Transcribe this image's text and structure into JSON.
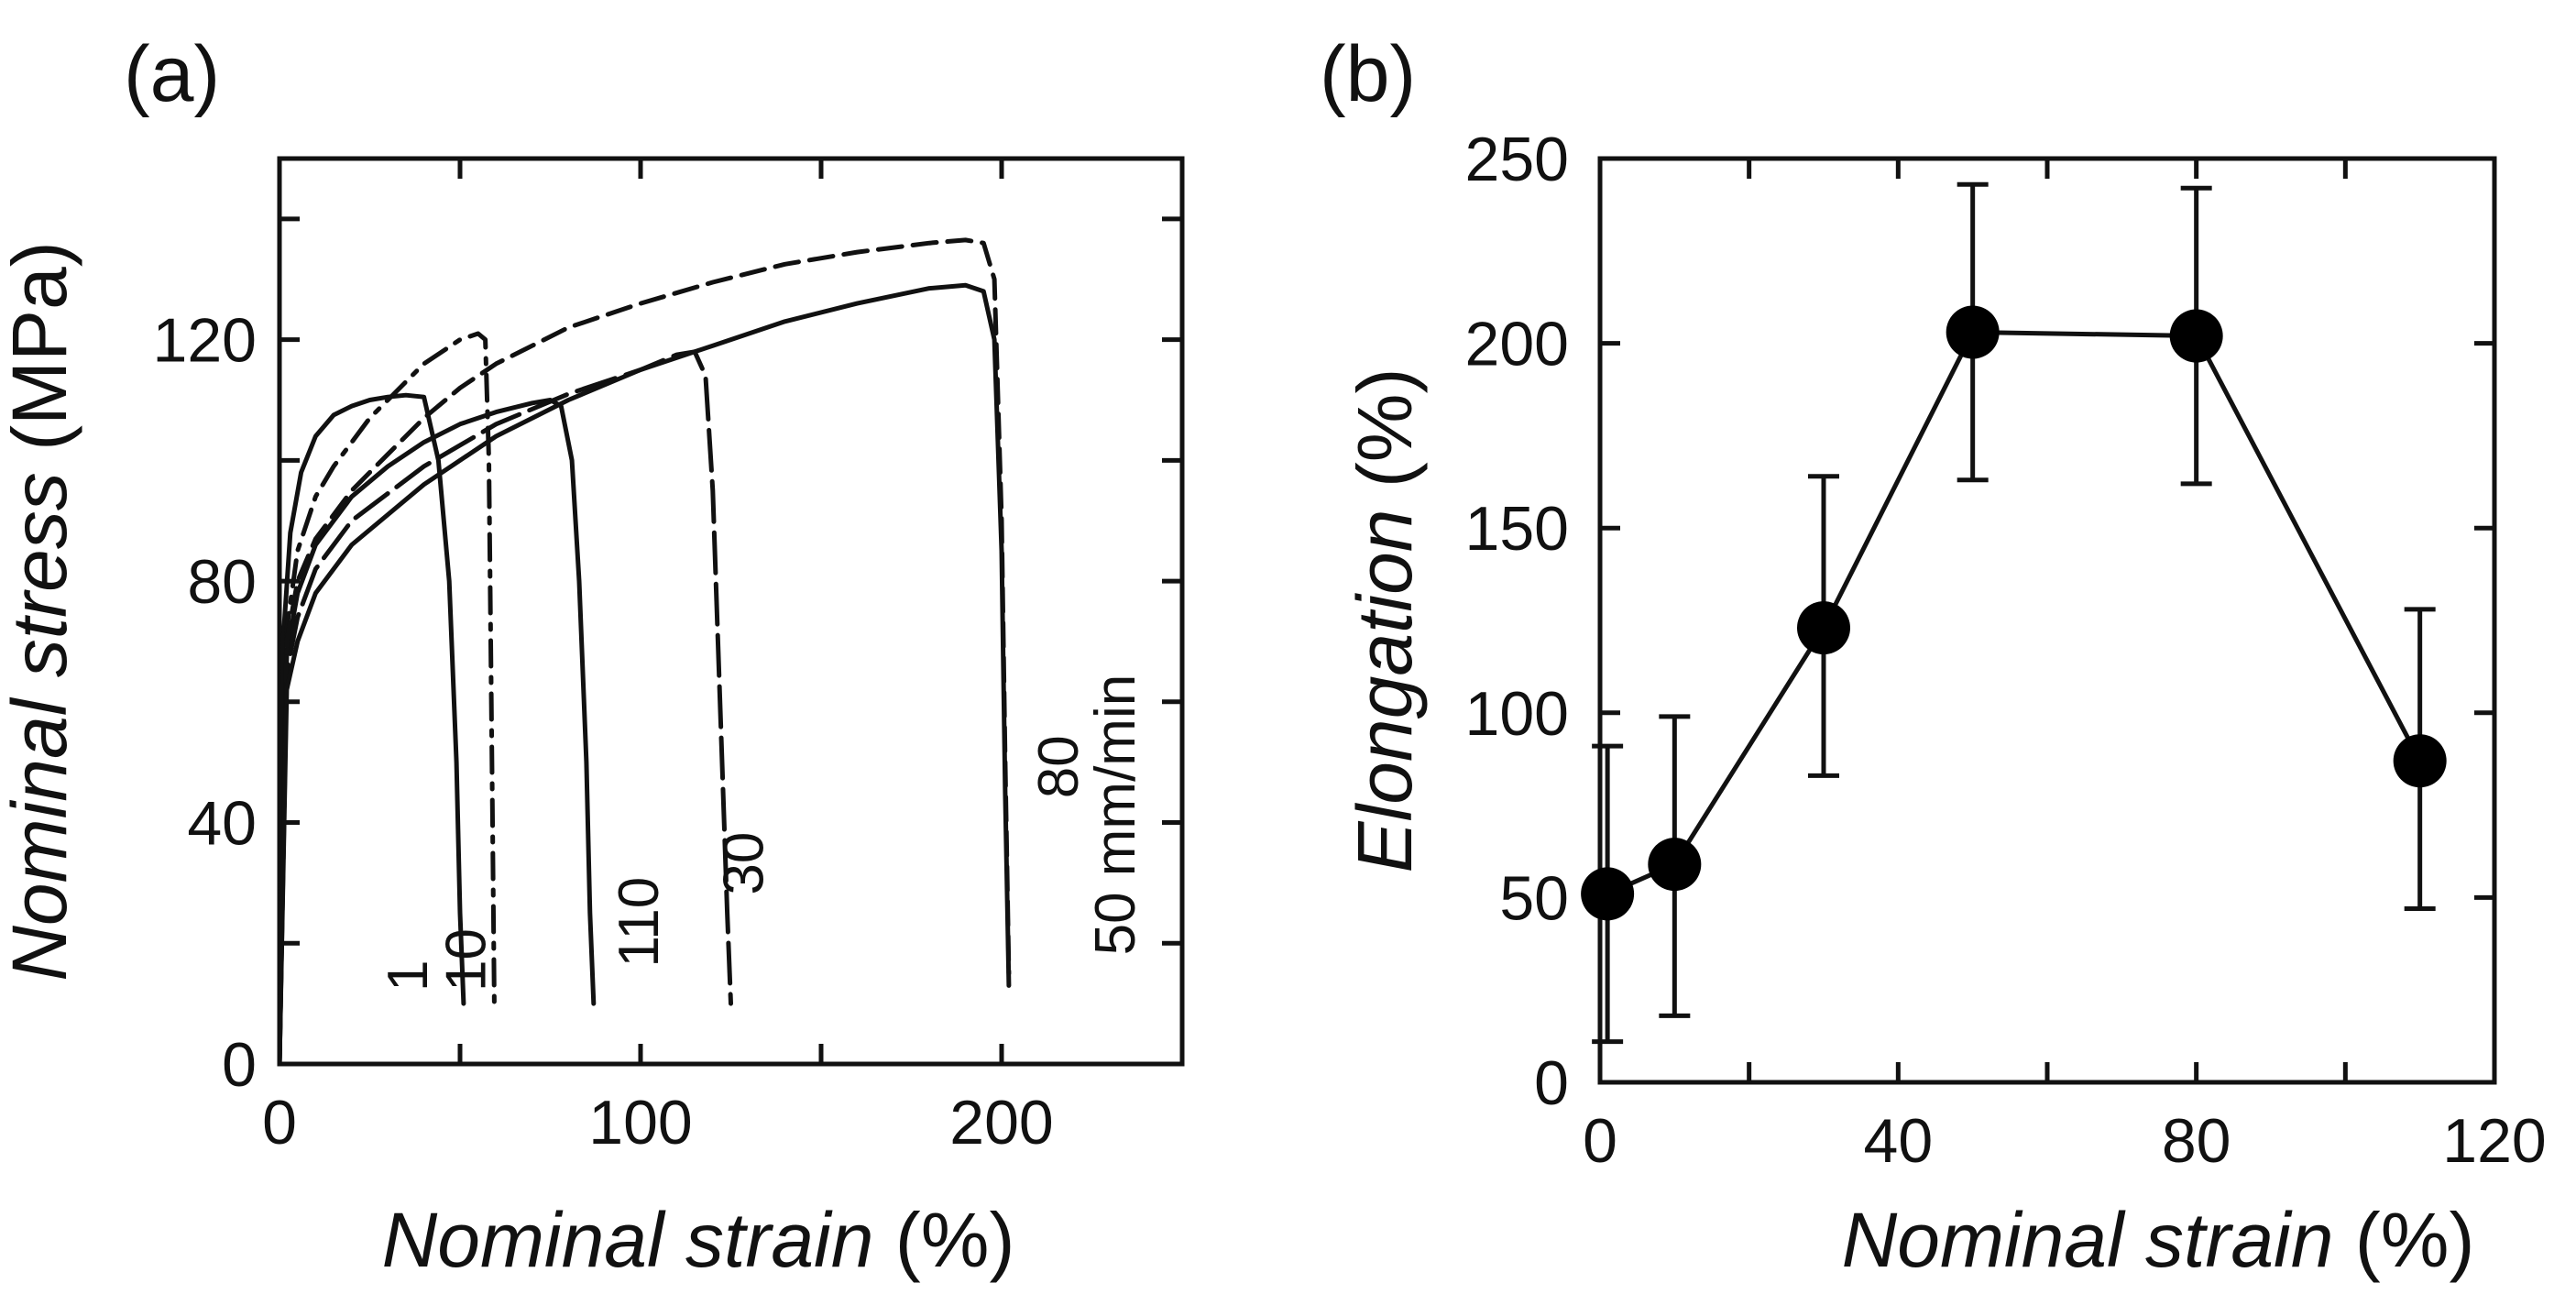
{
  "chart_data": [
    {
      "panel": "(a)",
      "type": "line",
      "title": "",
      "xlabel_italic": "Nominal strain",
      "xlabel_unit": " (%)",
      "ylabel_italic": "Nominal stress",
      "ylabel_unit": " (MPa)",
      "xlim": [
        0,
        250
      ],
      "ylim": [
        0,
        150
      ],
      "xticks": [
        0,
        100,
        200
      ],
      "yticks": [
        0,
        40,
        80,
        120
      ],
      "x_minor_ticks": [
        50,
        150
      ],
      "y_minor_ticks": [
        20,
        60,
        100,
        140
      ],
      "series": [
        {
          "name": "1",
          "style": "solid",
          "label": "1",
          "x": [
            0,
            1,
            3,
            6,
            10,
            15,
            20,
            25,
            30,
            35,
            40,
            44,
            47,
            49,
            50,
            51
          ],
          "y": [
            0,
            70,
            88,
            98,
            104,
            107.5,
            109,
            110,
            110.5,
            110.8,
            110.5,
            100,
            80,
            50,
            25,
            10
          ]
        },
        {
          "name": "10",
          "style": "dashdot",
          "label": "10",
          "x": [
            0,
            2,
            5,
            10,
            15,
            20,
            25,
            30,
            35,
            40,
            45,
            50,
            55,
            57,
            58,
            58.5,
            59,
            59.5
          ],
          "y": [
            0,
            72,
            85,
            94,
            99,
            103,
            107,
            110,
            113,
            116,
            118,
            120,
            121,
            120,
            100,
            70,
            40,
            10
          ]
        },
        {
          "name": "110",
          "style": "solid",
          "label": "110",
          "x": [
            0,
            2,
            5,
            10,
            20,
            30,
            40,
            50,
            60,
            70,
            75,
            78,
            81,
            83,
            85,
            86,
            87
          ],
          "y": [
            0,
            68,
            78,
            86,
            94,
            99,
            103,
            106,
            108,
            109.5,
            110,
            109,
            100,
            80,
            50,
            25,
            10
          ]
        },
        {
          "name": "30",
          "style": "longdash",
          "label": "30",
          "x": [
            0,
            2,
            5,
            10,
            20,
            40,
            60,
            80,
            100,
            110,
            115,
            118,
            120,
            122,
            124,
            125
          ],
          "y": [
            0,
            65,
            74,
            82,
            90,
            99,
            106,
            111,
            115,
            117.5,
            118,
            114,
            95,
            60,
            25,
            10
          ]
        },
        {
          "name": "80",
          "style": "dashed",
          "label": "80",
          "x": [
            0,
            2,
            5,
            10,
            20,
            30,
            40,
            50,
            60,
            70,
            80,
            100,
            120,
            140,
            160,
            180,
            190,
            195,
            198,
            200,
            201,
            202
          ],
          "y": [
            0,
            70,
            80,
            87,
            95,
            101,
            107,
            112,
            116,
            119,
            122,
            126,
            129.5,
            132.5,
            134.5,
            136,
            136.5,
            136,
            130,
            90,
            50,
            15
          ]
        },
        {
          "name": "50 mm/min",
          "style": "solid",
          "label": "50 mm/min",
          "x": [
            0,
            2,
            5,
            10,
            20,
            40,
            60,
            80,
            100,
            120,
            140,
            160,
            180,
            190,
            195,
            198,
            200,
            201,
            202
          ],
          "y": [
            0,
            62,
            70,
            78,
            86,
            96,
            104,
            110,
            115,
            119,
            123,
            126,
            128.5,
            129,
            128,
            120,
            85,
            45,
            13
          ]
        }
      ]
    },
    {
      "panel": "(b)",
      "type": "scatter",
      "title": "",
      "xlabel_italic": "Nominal strain",
      "xlabel_unit": " (%)",
      "ylabel_italic": "Elongation",
      "ylabel_unit": " (%)",
      "xlim": [
        0,
        120
      ],
      "ylim": [
        0,
        250
      ],
      "xticks": [
        0,
        40,
        80,
        120
      ],
      "yticks": [
        0,
        50,
        100,
        150,
        200,
        250
      ],
      "x_minor_ticks": [
        20,
        60,
        100
      ],
      "y_minor_ticks": [],
      "connected": true,
      "x": [
        1,
        10,
        30,
        50,
        80,
        110
      ],
      "y": [
        51,
        59,
        123,
        203,
        202,
        87
      ],
      "err_low": [
        11,
        18,
        83,
        163,
        162,
        47
      ],
      "err_high": [
        91,
        99,
        164,
        243,
        242,
        128
      ]
    }
  ]
}
